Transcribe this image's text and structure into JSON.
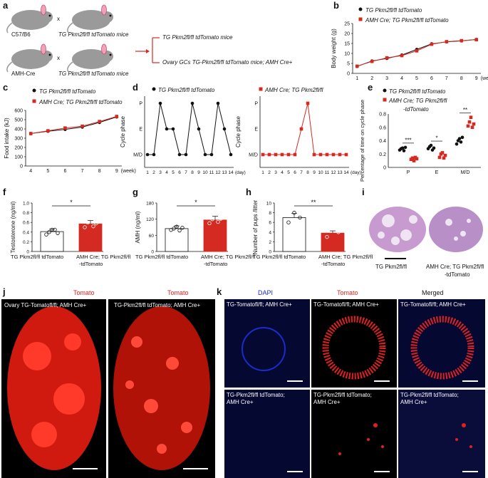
{
  "panel_letters": [
    "a",
    "b",
    "c",
    "d",
    "e",
    "f",
    "g",
    "h",
    "i",
    "j",
    "k"
  ],
  "a": {
    "mouse1": "C57/B6",
    "cross": "x",
    "mouse2": "TG Pkm2fl/fl tdTomato mice",
    "mouse3": "AMH-Cre",
    "mouse4": "TG Pkm2fl/fl tdTomato mice",
    "out1": "TG Pkm2fl/fl tdTomato mice",
    "out2": "Ovary GCs TG-Pkm2fl/fl tdTomato mice; AMH Cre+"
  },
  "legend": {
    "ctrl": "TG Pkm2fl/fl tdTomato",
    "ko": "AMH Cre; TG Pkm2fl/fl tdTomato",
    "ko_short": "AMH Cre; TG Pkm2fl/fl",
    "ko_e1": "AMH Cre; TG Pkm2fl/fl",
    "ko_e2": "-tdTomato"
  },
  "colors": {
    "ctrl": "#111111",
    "ko": "#d42a22",
    "dapi": "#1a2ccc",
    "tomato": "#e02020"
  },
  "chart_data": [
    {
      "panel": "b",
      "type": "line",
      "ylabel": "Body weight (g)",
      "xunit": "(week)",
      "x": [
        1,
        2,
        3,
        4,
        5,
        6,
        7,
        8,
        9
      ],
      "ylim": [
        0,
        25
      ],
      "yticks": [
        0,
        5,
        10,
        15,
        20,
        25
      ],
      "series": [
        {
          "name": "TG Pkm2fl/fl tdTomato",
          "values": [
            3.5,
            6.2,
            7.5,
            9.2,
            12,
            14.8,
            15.8,
            16.3,
            17
          ]
        },
        {
          "name": "AMH Cre; TG Pkm2fl/fl tdTomato",
          "values": [
            3.6,
            6.0,
            7.8,
            8.9,
            11.3,
            14.6,
            15.9,
            16.4,
            16.9
          ]
        }
      ]
    },
    {
      "panel": "c",
      "type": "line",
      "ylabel": "Food intake (kJ)",
      "xunit": "(week)",
      "x": [
        4,
        5,
        6,
        7,
        8,
        9
      ],
      "ylim": [
        0,
        600
      ],
      "yticks": [
        0,
        100,
        200,
        300,
        400,
        500,
        600
      ],
      "series": [
        {
          "name": "TG Pkm2fl/fl tdTomato",
          "values": [
            350,
            375,
            395,
            420,
            470,
            530
          ]
        },
        {
          "name": "AMH Cre; TG Pkm2fl/fl tdTomato",
          "values": [
            350,
            380,
            410,
            430,
            480,
            535
          ]
        }
      ]
    },
    {
      "panel": "d1",
      "type": "line",
      "ylabel": "Cycle phase",
      "xunit": "(day)",
      "yticks": [
        "M/D",
        "E",
        "P"
      ],
      "x": [
        1,
        2,
        3,
        4,
        5,
        6,
        7,
        8,
        9,
        10,
        11,
        12,
        13,
        14
      ],
      "series": [
        {
          "name": "TG Pkm2fl/fl tdTomato",
          "values": [
            0,
            0,
            2,
            1,
            1,
            0,
            0,
            2,
            1,
            0,
            0,
            2,
            1,
            0
          ]
        }
      ]
    },
    {
      "panel": "d2",
      "type": "line",
      "ylabel": "Cycle phase",
      "xunit": "(day)",
      "yticks": [
        "M/D",
        "E",
        "P"
      ],
      "x": [
        1,
        2,
        3,
        4,
        5,
        6,
        7,
        8,
        9,
        10,
        11,
        12,
        13,
        14
      ],
      "series": [
        {
          "name": "AMH Cre; TG Pkm2fl/fl",
          "values": [
            0,
            0,
            0,
            0,
            0,
            0,
            1,
            2,
            0,
            0,
            0,
            0,
            0,
            0
          ]
        }
      ]
    },
    {
      "panel": "e",
      "type": "scatter",
      "ylabel": "Percentage of time on cycle phase",
      "categories": [
        "P",
        "E",
        "M/D"
      ],
      "ylim": [
        0,
        0.8
      ],
      "yticks": [
        "0",
        "0.2",
        "0.4",
        "0.6",
        "0.8"
      ],
      "series": [
        {
          "name": "TG Pkm2fl/fl tdTomato",
          "values": [
            [
              0.26,
              0.28,
              0.29,
              0.25,
              0.3
            ],
            [
              0.28,
              0.31,
              0.33,
              0.26,
              0.29
            ],
            [
              0.35,
              0.4,
              0.43,
              0.38,
              0.45
            ]
          ]
        },
        {
          "name": "AMH Cre; TG Pkm2fl/fl -tdTomato",
          "values": [
            [
              0.12,
              0.14,
              0.1,
              0.15,
              0.13
            ],
            [
              0.15,
              0.2,
              0.22,
              0.14,
              0.18
            ],
            [
              0.62,
              0.68,
              0.75,
              0.6,
              0.65
            ]
          ]
        }
      ],
      "significance": [
        "***",
        "*",
        "**"
      ]
    },
    {
      "panel": "f",
      "type": "bar",
      "ylabel": "Testosterone (ng/ml)",
      "ylim": [
        0,
        1.0
      ],
      "yticks": [
        "0",
        "0.2",
        "0.4",
        "0.6",
        "0.8",
        "1.0"
      ],
      "categories": [
        "TG Pkm2fl/fl tdTomato",
        "AMH Cre; TG Pkm2fl/fl -tdTomato"
      ],
      "values": [
        0.41,
        0.57
      ],
      "points": [
        [
          0.35,
          0.4,
          0.45,
          0.45,
          0.38
        ],
        [
          0.5,
          0.6,
          0.65,
          0.52,
          0.58
        ]
      ],
      "significance": "*"
    },
    {
      "panel": "g",
      "type": "bar",
      "ylabel": "AMH (ng/ml)",
      "ylim": [
        0,
        180
      ],
      "yticks": [
        "0",
        "60",
        "120",
        "180"
      ],
      "categories": [
        "TG Pkm2fl/fl tdTomato",
        "AMH Cre; TG Pkm2fl/fl -tdTomato"
      ],
      "values": [
        85,
        117
      ],
      "points": [
        [
          80,
          85,
          92,
          78,
          88
        ],
        [
          105,
          120,
          130,
          110,
          122
        ]
      ],
      "significance": "*"
    },
    {
      "panel": "h",
      "type": "bar",
      "ylabel": "Number of pups /litter",
      "ylim": [
        0,
        10
      ],
      "yticks": [
        "0",
        "2",
        "4",
        "6",
        "8",
        "10"
      ],
      "categories": [
        "TG Pkm2fl/fl tdTomato",
        "AMH Cre; TG Pkm2fl/fl -tdTomato"
      ],
      "values": [
        7,
        3.8
      ],
      "points": [
        [
          6,
          8,
          7
        ],
        [
          3,
          4.5,
          4
        ]
      ],
      "significance": "**"
    }
  ],
  "i": {
    "left": "TG Pkm2fl/fl",
    "right1": "AMH Cre; TG Pkm2fl/fl",
    "right2": "-tdTomato"
  },
  "j": {
    "title1": "Tomato",
    "title2": "Tomato",
    "label1": "Ovary TG-Tomatofl/fl; AMH Cre+",
    "label2": "TG-Pkm2fl/fl tdTomato; AMH Cre+"
  },
  "k": {
    "col1": "DAPI",
    "col2": "Tomato",
    "col3": "Merged",
    "row1": "TG-Tomatofl/fl; AMH Cre+",
    "row2a": "TG-Pkm2fl/fl tdTomato;",
    "row2b": "AMH Cre+"
  }
}
